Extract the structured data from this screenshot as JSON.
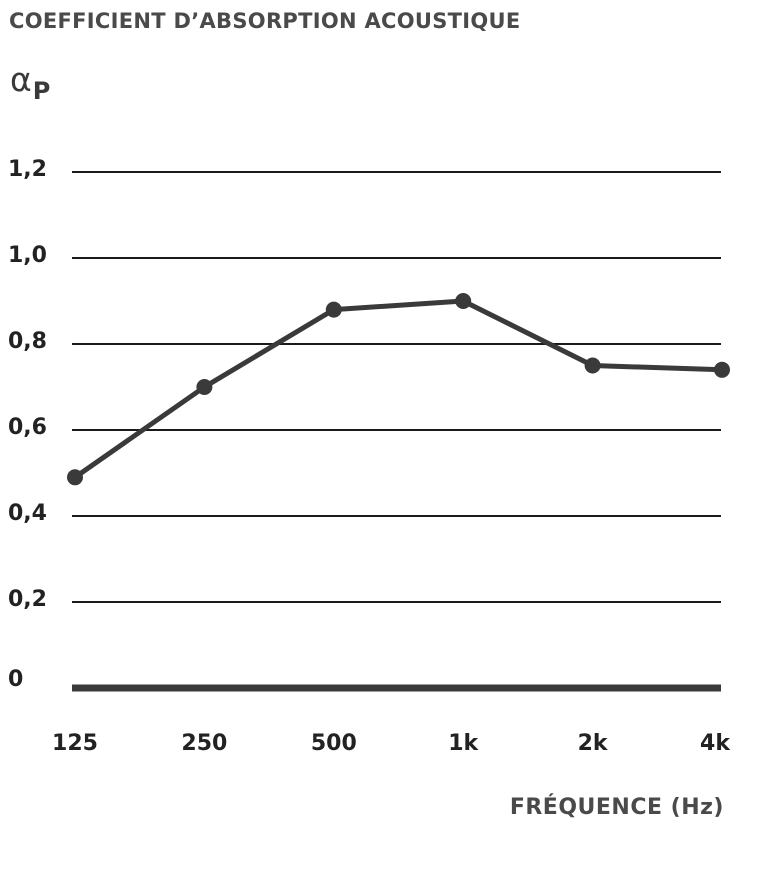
{
  "chart_data": {
    "type": "line",
    "title": "COEFFICIENT D’ABSORPTION ACOUSTIQUE",
    "ylabel_symbol": "α",
    "ylabel_subscript": "P",
    "xlabel": "FRÉQUENCE (Hz)",
    "categories": [
      "125",
      "250",
      "500",
      "1k",
      "2k",
      "4k"
    ],
    "values": [
      0.49,
      0.7,
      0.88,
      0.9,
      0.75,
      0.74
    ],
    "ylim": [
      0,
      1.2
    ],
    "yticks": [
      {
        "value": 0,
        "label": "0"
      },
      {
        "value": 0.2,
        "label": "0,2"
      },
      {
        "value": 0.4,
        "label": "0,4"
      },
      {
        "value": 0.6,
        "label": "0,6"
      },
      {
        "value": 0.8,
        "label": "0,8"
      },
      {
        "value": 1.0,
        "label": "1,0"
      },
      {
        "value": 1.2,
        "label": "1,2"
      }
    ],
    "grid": true,
    "legend": "none",
    "colors": {
      "line": "#3a3a3a",
      "grid": "#1a1a1a",
      "baseline": "#3a3a3a",
      "text": "#222222"
    }
  }
}
